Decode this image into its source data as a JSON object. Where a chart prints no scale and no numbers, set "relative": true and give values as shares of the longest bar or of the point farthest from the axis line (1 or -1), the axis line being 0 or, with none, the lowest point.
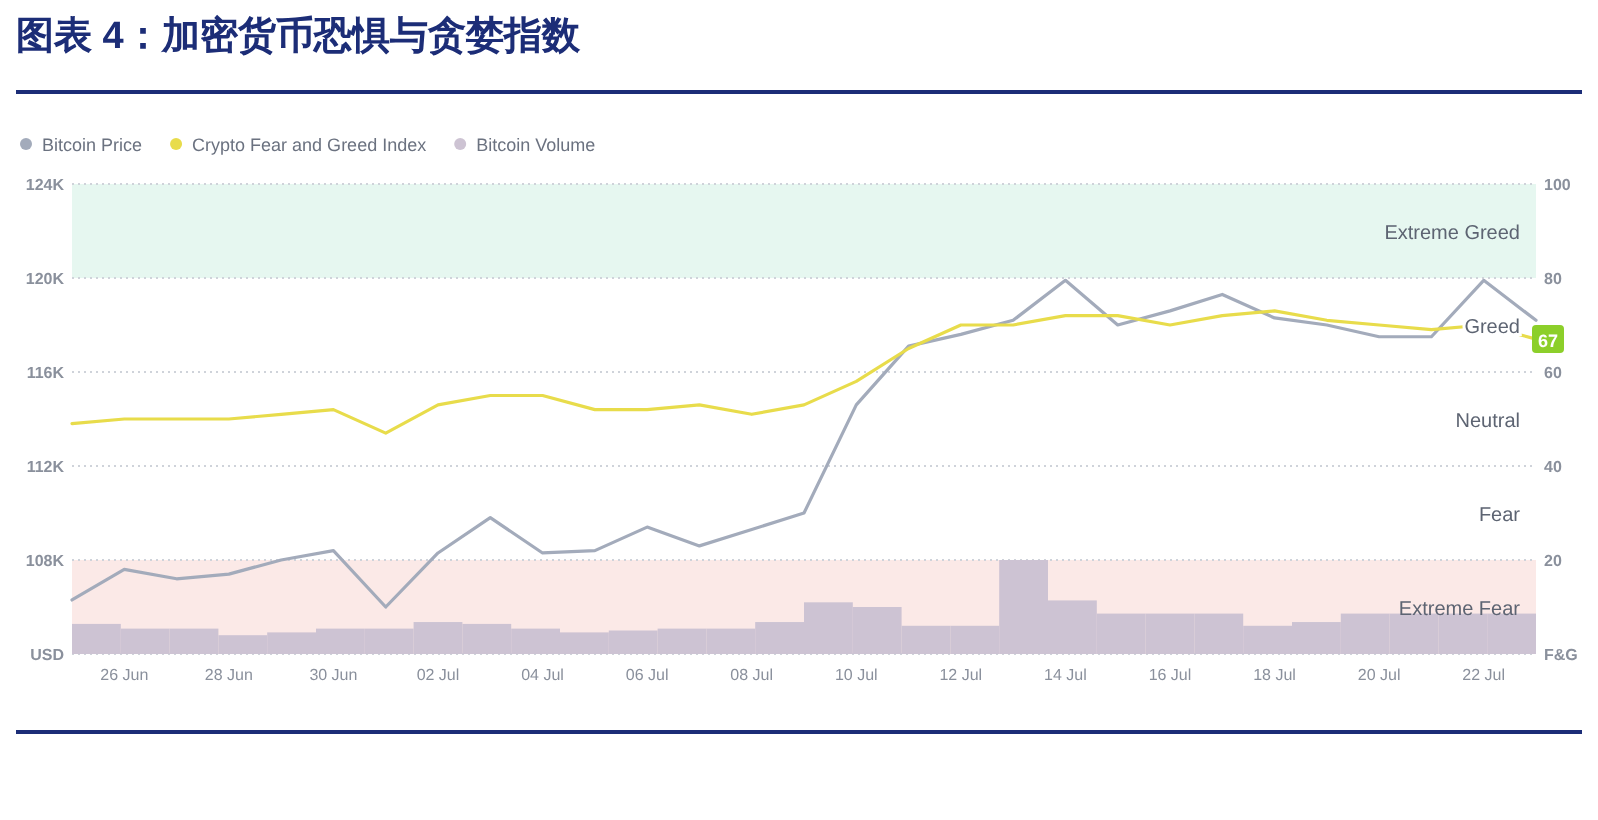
{
  "chart_data": [
    {
      "type": "line",
      "title": "图表 4：加密货币恐惧与贪婪指数",
      "x": [
        "--06-25",
        "--06-26",
        "--06-27",
        "--06-28",
        "--06-29",
        "--06-30",
        "--07-01",
        "--07-02",
        "--07-03",
        "--07-04",
        "--07-05",
        "--07-06",
        "--07-07",
        "--07-08",
        "--07-09",
        "--07-10",
        "--07-11",
        "--07-12",
        "--07-13",
        "--07-14",
        "--07-15",
        "--07-16",
        "--07-17",
        "--07-18",
        "--07-19",
        "--07-20",
        "--07-21",
        "--07-22",
        "--07-23"
      ],
      "xlim": [
        "--06-25",
        "--07-23"
      ],
      "xticks": [
        {
          "value": "--06-26",
          "label": "26 Jun"
        },
        {
          "value": "--06-28",
          "label": "28 Jun"
        },
        {
          "value": "--06-30",
          "label": "30 Jun"
        },
        {
          "value": "--07-02",
          "label": "02 Jul"
        },
        {
          "value": "--07-04",
          "label": "04 Jul"
        },
        {
          "value": "--07-06",
          "label": "06 Jul"
        },
        {
          "value": "--07-08",
          "label": "08 Jul"
        },
        {
          "value": "--07-10",
          "label": "10 Jul"
        },
        {
          "value": "--07-12",
          "label": "12 Jul"
        },
        {
          "value": "--07-14",
          "label": "14 Jul"
        },
        {
          "value": "--07-16",
          "label": "16 Jul"
        },
        {
          "value": "--07-18",
          "label": "18 Jul"
        },
        {
          "value": "--07-20",
          "label": "20 Jul"
        },
        {
          "value": "--07-22",
          "label": "22 Jul"
        }
      ],
      "ylim": [
        104000,
        124000
      ],
      "yticks": [
        {
          "value": 104000,
          "label": "USD"
        },
        {
          "value": 108000,
          "label": "108K"
        },
        {
          "value": 112000,
          "label": "112K"
        },
        {
          "value": 116000,
          "label": "116K"
        },
        {
          "value": 120000,
          "label": "120K"
        },
        {
          "value": 124000,
          "label": "124K"
        }
      ],
      "y2lim": [
        0,
        100
      ],
      "y2ticks": [
        {
          "value": 0,
          "label": "F&G"
        },
        20,
        40,
        60,
        80,
        100
      ],
      "series": [
        {
          "name": "Bitcoin Price",
          "color": "#a3abbb",
          "values": [
            106300,
            107600,
            107200,
            107400,
            108000,
            108400,
            106000,
            108300,
            109800,
            108300,
            108400,
            109400,
            108600,
            109300,
            110000,
            114600,
            117100,
            117600,
            118200,
            119900,
            118000,
            118600,
            119300,
            118300,
            118000,
            117500,
            117500,
            119900,
            118200
          ]
        },
        {
          "name": "Crypto Fear and Greed Index",
          "axis": "y2",
          "color": "#e8dc4b",
          "values": [
            49,
            50,
            50,
            50,
            51,
            52,
            47,
            53,
            55,
            55,
            52,
            52,
            53,
            51,
            53,
            58,
            65,
            70,
            70,
            72,
            72,
            70,
            72,
            73,
            71,
            70,
            69,
            70,
            67
          ]
        }
      ],
      "bands": [
        {
          "axis": "y2",
          "from": 80,
          "to": 100,
          "label": "Extreme Greed",
          "color": "#e6f7f0"
        },
        {
          "axis": "y2",
          "from": 0,
          "to": 20,
          "label": "Extreme Fear",
          "color": "#fbe9e7"
        }
      ],
      "annotations": [
        "Greed",
        "Neutral",
        "Fear",
        "67"
      ],
      "grid": "y",
      "legend": "top left",
      "marker": "none",
      "line_style": "solid"
    },
    {
      "type": "bar",
      "relative": true,
      "categories": [
        null,
        null,
        null,
        null,
        null,
        null,
        null,
        null,
        null,
        null,
        null,
        null,
        null,
        null,
        null,
        null,
        null,
        null,
        null,
        null,
        null,
        null,
        null,
        null,
        null,
        null,
        null,
        null,
        null,
        null
      ],
      "series": [
        {
          "name": "Bitcoin Volume",
          "color": "#cdc3d3",
          "values": [
            0.32,
            0.27,
            0.27,
            0.2,
            0.23,
            0.27,
            0.27,
            0.34,
            0.32,
            0.27,
            0.23,
            0.25,
            0.27,
            0.27,
            0.34,
            0.55,
            0.5,
            0.3,
            0.3,
            1,
            0.57,
            0.43,
            0.43,
            0.43,
            0.3,
            0.34,
            0.43,
            0.43,
            0.43,
            0.43
          ]
        }
      ],
      "legend": "top left"
    }
  ]
}
